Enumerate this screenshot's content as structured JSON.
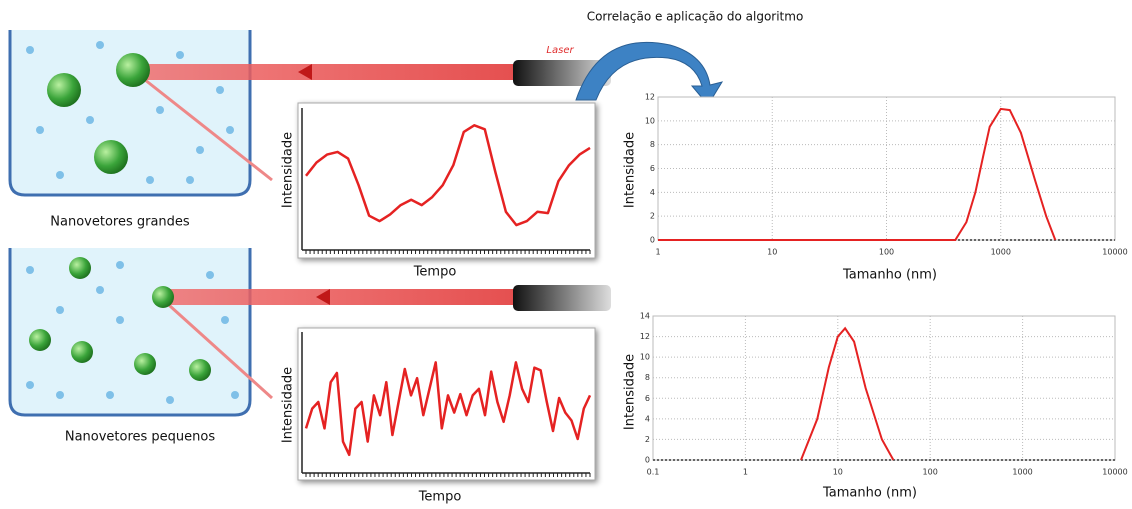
{
  "annotations": {
    "algorithm": "Correlação e aplicação do algoritmo",
    "laser": "Laser",
    "large": "Nanovetores grandes",
    "small": "Nanovetores pequenos"
  },
  "chart_data": [
    {
      "type": "signal",
      "ylabel": "Intensidade",
      "xlabel": "Tempo",
      "color": "#e52222",
      "ylim": [
        0,
        10
      ],
      "values": [
        5.2,
        6.2,
        6.8,
        7.0,
        6.5,
        4.5,
        2.2,
        1.8,
        2.3,
        3.0,
        3.4,
        3.0,
        3.6,
        4.5,
        6.0,
        8.5,
        9.0,
        8.7,
        5.5,
        2.5,
        1.5,
        1.8,
        2.5,
        2.4,
        4.8,
        6.0,
        6.8,
        7.3
      ]
    },
    {
      "type": "signal",
      "ylabel": "Intensidade",
      "xlabel": "Tempo",
      "color": "#e52222",
      "ylim": [
        0,
        10
      ],
      "values": [
        3,
        4.5,
        5,
        3,
        6.5,
        7.2,
        2,
        1,
        4.5,
        5,
        2,
        5.5,
        4,
        6.5,
        2.5,
        5,
        7.5,
        5.5,
        6.8,
        4,
        6,
        8,
        3,
        5.5,
        4.2,
        5.6,
        4,
        5.5,
        6,
        4,
        7.3,
        5,
        3.5,
        5.5,
        8,
        6,
        5,
        7.6,
        7.4,
        5,
        2.8,
        5.3,
        4.2,
        3.6,
        2.2,
        4.5,
        5.5
      ]
    },
    {
      "type": "line",
      "ylabel": "Intensidade",
      "xlabel": "Tamanho (nm)",
      "color": "#e52222",
      "log_x": true,
      "grid": true,
      "xlim": [
        1,
        10000
      ],
      "xticks": [
        1,
        10,
        100,
        1000,
        10000
      ],
      "ylim": [
        0,
        12
      ],
      "yticks": [
        0,
        2,
        4,
        6,
        8,
        10,
        12
      ],
      "x": [
        1,
        400,
        500,
        600,
        700,
        800,
        1000,
        1200,
        1500,
        2000,
        2500,
        3000
      ],
      "values": [
        0,
        0,
        1.5,
        4,
        7,
        9.5,
        11,
        10.9,
        9,
        5,
        2,
        0
      ]
    },
    {
      "type": "line",
      "ylabel": "Intensidade",
      "xlabel": "Tamanho (nm)",
      "color": "#e52222",
      "log_x": true,
      "grid": true,
      "xlim": [
        0.1,
        10000
      ],
      "xticks": [
        0.1,
        1,
        10,
        100,
        1000,
        10000
      ],
      "ylim": [
        0,
        14
      ],
      "yticks": [
        0,
        2,
        4,
        6,
        8,
        10,
        12,
        14
      ],
      "x": [
        4,
        6,
        8,
        10,
        12,
        15,
        20,
        30,
        40
      ],
      "values": [
        0,
        4,
        9,
        12,
        12.8,
        11.5,
        7,
        2,
        0
      ]
    }
  ]
}
